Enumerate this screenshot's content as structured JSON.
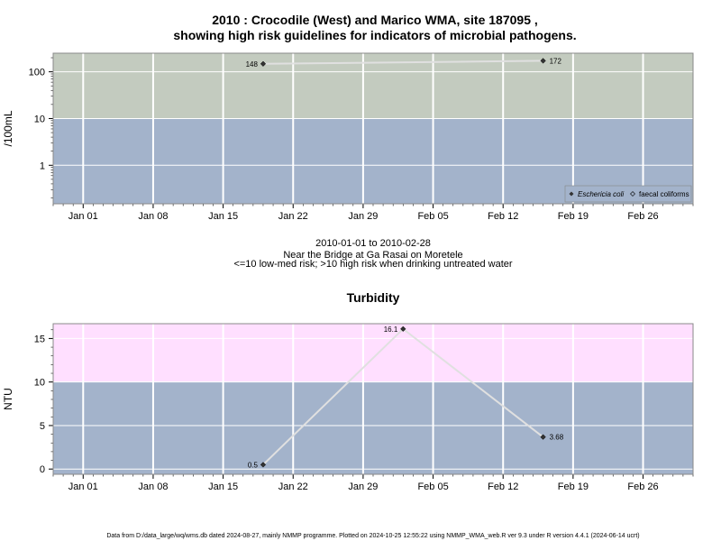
{
  "title_line1": "2010 : Crocodile (West) and Marico WMA, site 187095 ,",
  "title_line2": "showing high risk guidelines for indicators of microbial pathogens.",
  "subtitle_lines": [
    "2010-01-01 to 2010-02-28",
    "Near the Bridge at Ga Rasai on Moretele",
    "<=10 low-med risk; >10 high risk when drinking untreated water"
  ],
  "footer": "Data from D:/data_large/wq/wms.db dated 2024-08-27, mainly NMMP programme. Plotted on 2024-10-25 12:55:22 using NMMP_WMA_web.R ver 9.3 under R version 4.4.1 (2024-06-14 ucrt)",
  "colors": {
    "low_risk": "#a3b3cb",
    "high_risk_micro": "#c3cbbf",
    "high_risk_turb": "#ffdfff",
    "grid": "#ffffff",
    "line": "#e0e0e0",
    "point": "#333333"
  },
  "chart_data": [
    {
      "type": "line",
      "ylabel": "/100mL",
      "y_scale": "log",
      "ylim": [
        0.15,
        250
      ],
      "y_ticks": [
        1,
        10,
        100
      ],
      "y_tick_labels": [
        "1",
        "10",
        "100"
      ],
      "x_range": [
        "2009-12-29",
        "2010-03-03"
      ],
      "x_ticks": [
        "2010-01-01",
        "2010-01-08",
        "2010-01-15",
        "2010-01-22",
        "2010-01-29",
        "2010-02-05",
        "2010-02-12",
        "2010-02-19",
        "2010-02-26"
      ],
      "x_tick_labels": [
        "Jan 01",
        "Jan 08",
        "Jan 15",
        "Jan 22",
        "Jan 29",
        "Feb 05",
        "Feb 12",
        "Feb 19",
        "Feb 26"
      ],
      "threshold": 10,
      "series": [
        {
          "name": "Eschericia coli",
          "x": [
            "2010-01-19",
            "2010-02-16"
          ],
          "y": [
            148,
            172
          ],
          "labels": [
            "148",
            "172"
          ]
        }
      ],
      "legend": {
        "placement": "bottom-right",
        "entries": [
          "Eschericia coli",
          "faecal coliforms"
        ]
      },
      "grid": true
    },
    {
      "type": "line",
      "title": "Turbidity",
      "ylabel": "NTU",
      "ylim": [
        -0.6,
        16.7
      ],
      "y_ticks": [
        0,
        5,
        10,
        15
      ],
      "y_tick_labels": [
        "0",
        "5",
        "10",
        "15"
      ],
      "x_range": [
        "2009-12-29",
        "2010-03-03"
      ],
      "x_ticks": [
        "2010-01-01",
        "2010-01-08",
        "2010-01-15",
        "2010-01-22",
        "2010-01-29",
        "2010-02-05",
        "2010-02-12",
        "2010-02-19",
        "2010-02-26"
      ],
      "x_tick_labels": [
        "Jan 01",
        "Jan 08",
        "Jan 15",
        "Jan 22",
        "Jan 29",
        "Feb 05",
        "Feb 12",
        "Feb 19",
        "Feb 26"
      ],
      "threshold": 10,
      "series": [
        {
          "x": [
            "2010-01-19",
            "2010-02-02",
            "2010-02-16"
          ],
          "y": [
            0.5,
            16.1,
            3.68
          ],
          "labels": [
            "0.5",
            "16.1",
            "3.68"
          ]
        }
      ],
      "grid": true
    }
  ]
}
